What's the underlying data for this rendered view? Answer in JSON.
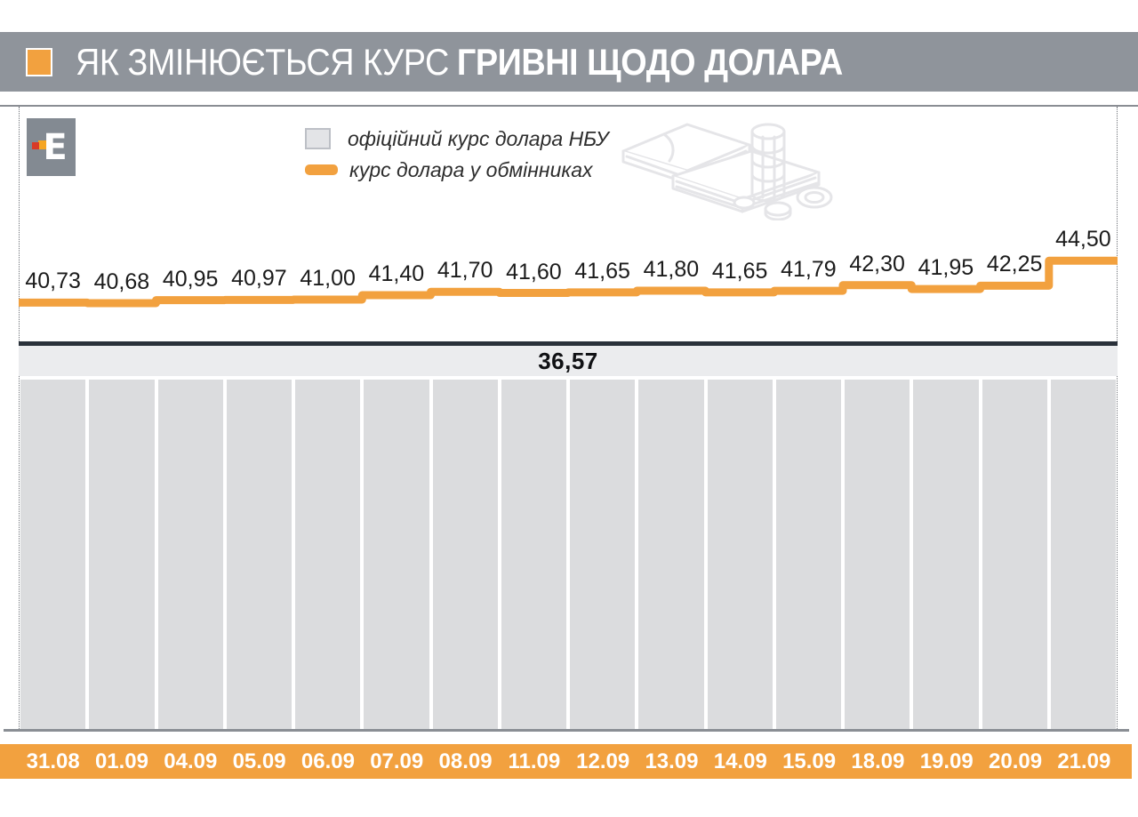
{
  "title": {
    "prefix": "ЯК ЗМІНЮЄТЬСЯ КУРС",
    "emphasis": "ГРИВНІ ЩОДО ДОЛАРА"
  },
  "logo": {
    "letter": "E"
  },
  "legend": {
    "items": [
      {
        "swatch": "gray-square",
        "label": "офіційний курс долара НБУ"
      },
      {
        "swatch": "orange-line",
        "label": "курс долара у обмінниках"
      }
    ]
  },
  "official_rate_label": "36,57",
  "chart_data": {
    "type": "line",
    "subtype": "step",
    "title": "ЯК ЗМІНЮЄТЬСЯ КУРС ГРИВНІ ЩОДО ДОЛАРА",
    "categories": [
      "31.08",
      "01.09",
      "04.09",
      "05.09",
      "06.09",
      "07.09",
      "08.09",
      "11.09",
      "12.09",
      "13.09",
      "14.09",
      "15.09",
      "18.09",
      "19.09",
      "20.09",
      "21.09"
    ],
    "series": [
      {
        "name": "курс долара у обмінниках",
        "color": "#F2A13F",
        "values": [
          40.73,
          40.68,
          40.95,
          40.97,
          41.0,
          41.4,
          41.7,
          41.6,
          41.65,
          41.8,
          41.65,
          41.79,
          42.3,
          41.95,
          42.25,
          44.5
        ]
      },
      {
        "name": "офіційний курс долара НБУ",
        "color": "#2A313A",
        "constant": 36.57
      }
    ],
    "value_format": "comma-decimal",
    "legend_position": "top-left",
    "grid": false,
    "ylim": [
      36.57,
      45
    ]
  },
  "colors": {
    "accent_orange": "#F2A13F",
    "title_bar_gray": "#8F949B",
    "nbu_line_dark": "#2A313A",
    "nbu_band_gray": "#EBECEE",
    "column_gray": "#DBDCDE",
    "logo_gray": "#838A92",
    "logo_dot_red": "#D93B26",
    "logo_dot_orange": "#F6A623"
  }
}
